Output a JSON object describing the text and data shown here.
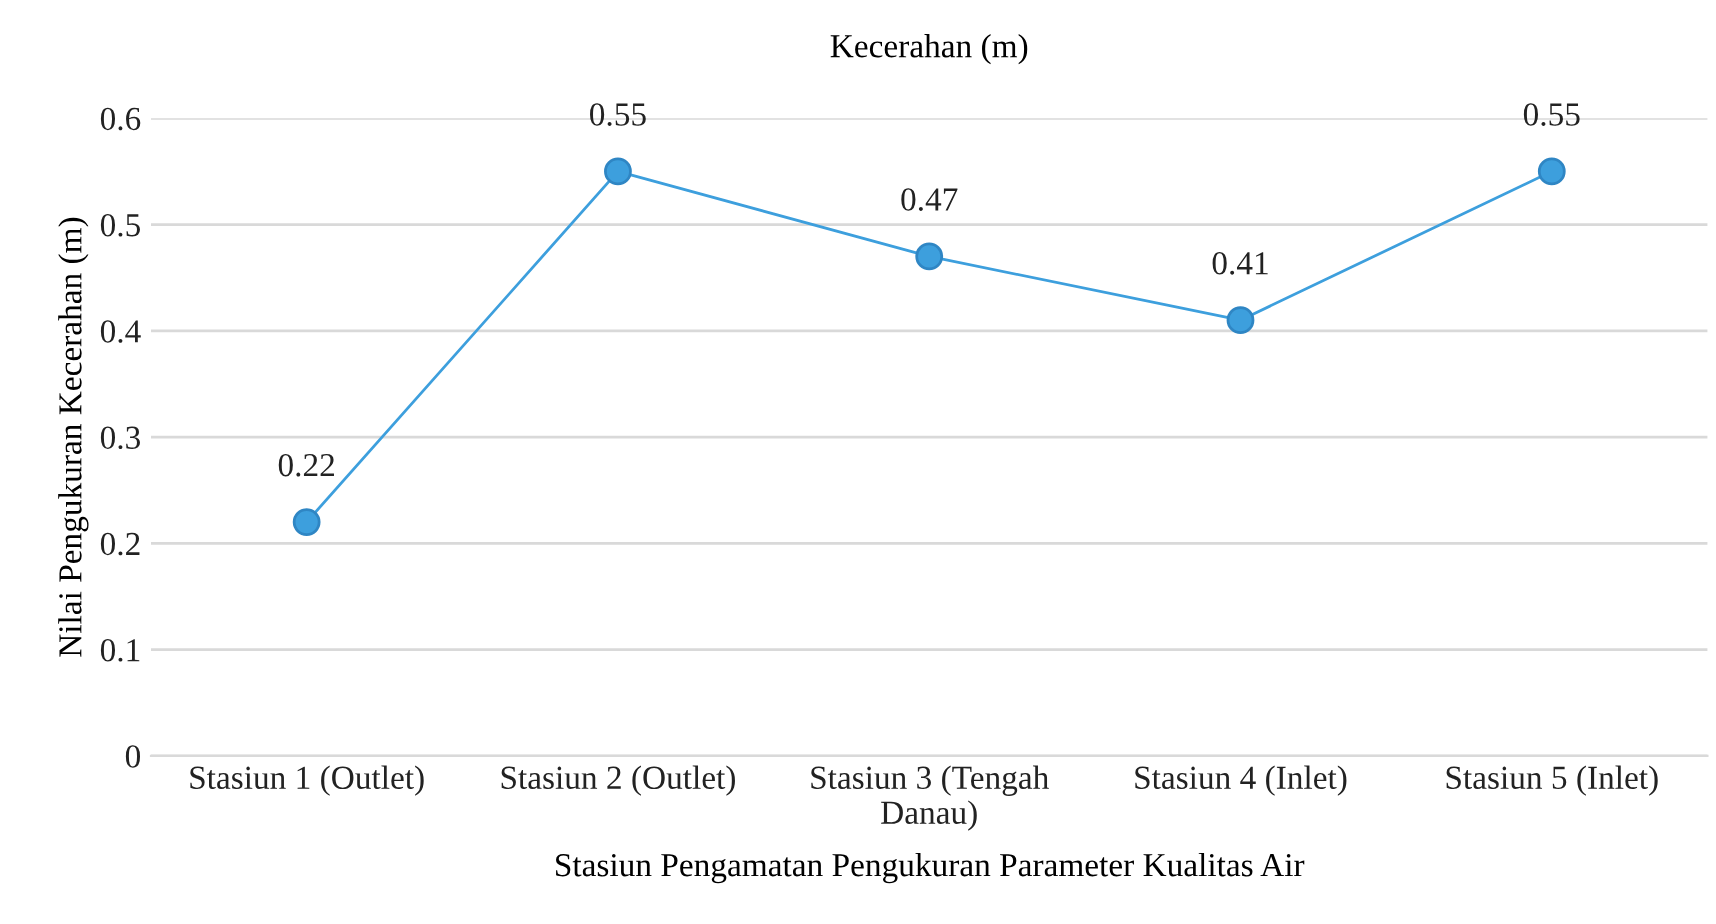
{
  "chart_data": {
    "type": "line",
    "title": "Kecerahan (m)",
    "xlabel": "Stasiun Pengamatan Pengukuran Parameter Kualitas Air",
    "ylabel": "Nilai Pengukuran Kecerahan (m)",
    "categories": [
      "Stasiun 1 (Outlet)",
      "Stasiun 2 (Outlet)",
      "Stasiun 3 (Tengah\nDanau)",
      "Stasiun 4 (Inlet)",
      "Stasiun 5 (Inlet)"
    ],
    "series": [
      {
        "color": "#3d9fdd",
        "values": [
          0.22,
          0.55,
          0.47,
          0.41,
          0.55
        ]
      }
    ],
    "ylim": [
      0,
      0.6
    ],
    "yticks": [
      0,
      0.1,
      0.2,
      0.3,
      0.4,
      0.5,
      0.6
    ],
    "grid": "y",
    "marker": "circle",
    "line_style": "solid",
    "data_labels": true
  }
}
